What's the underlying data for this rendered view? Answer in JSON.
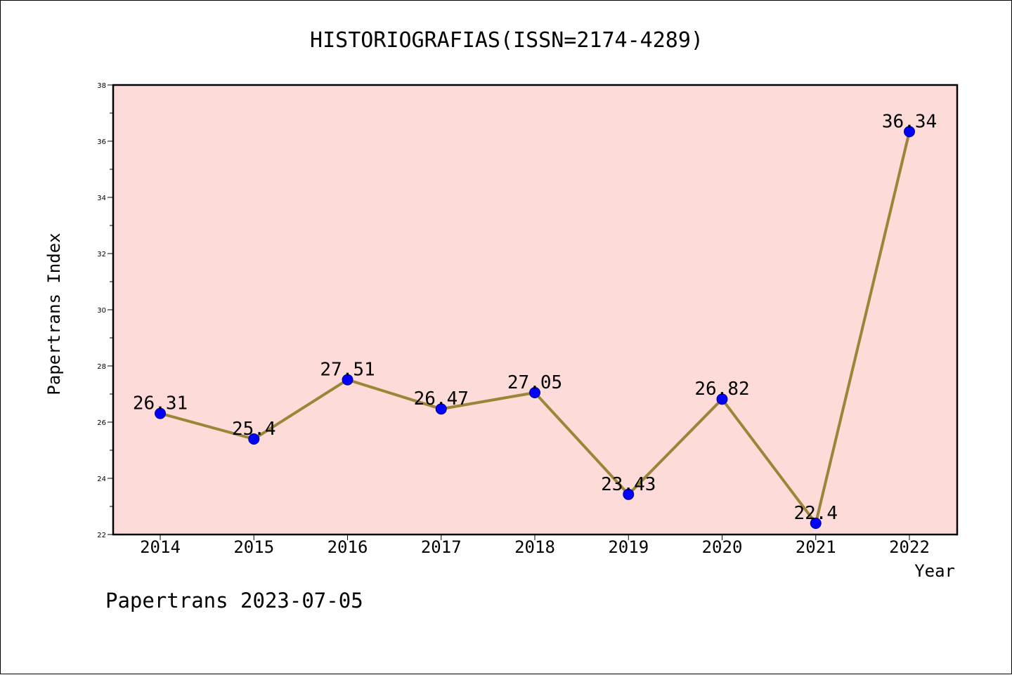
{
  "chart_data": {
    "type": "line",
    "title": "HISTORIOGRAFIAS(ISSN=2174-4289)",
    "xlabel": "Year",
    "ylabel": "Papertrans Index",
    "categories": [
      "2014",
      "2015",
      "2016",
      "2017",
      "2018",
      "2019",
      "2020",
      "2021",
      "2022"
    ],
    "values": [
      26.31,
      25.4,
      27.51,
      26.47,
      27.05,
      23.43,
      26.82,
      22.4,
      36.34
    ],
    "data_labels": [
      "26.31",
      "25.4",
      "27.51",
      "26.47",
      "27.05",
      "23.43",
      "26.82",
      "22.4",
      "36.34"
    ],
    "ylim": [
      22,
      38
    ],
    "yticks": [
      22,
      24,
      26,
      28,
      30,
      32,
      34,
      36,
      38
    ],
    "ytick_labels": [
      "22",
      "24",
      "26",
      "28",
      "30",
      "32",
      "34",
      "36",
      "38"
    ],
    "grid": false,
    "colors": {
      "plot_background": "#fddbd8",
      "line": "#9b8538",
      "marker": "#0000ff",
      "marker_edge": "#00008b"
    }
  },
  "footer": "Papertrans 2023-07-05"
}
